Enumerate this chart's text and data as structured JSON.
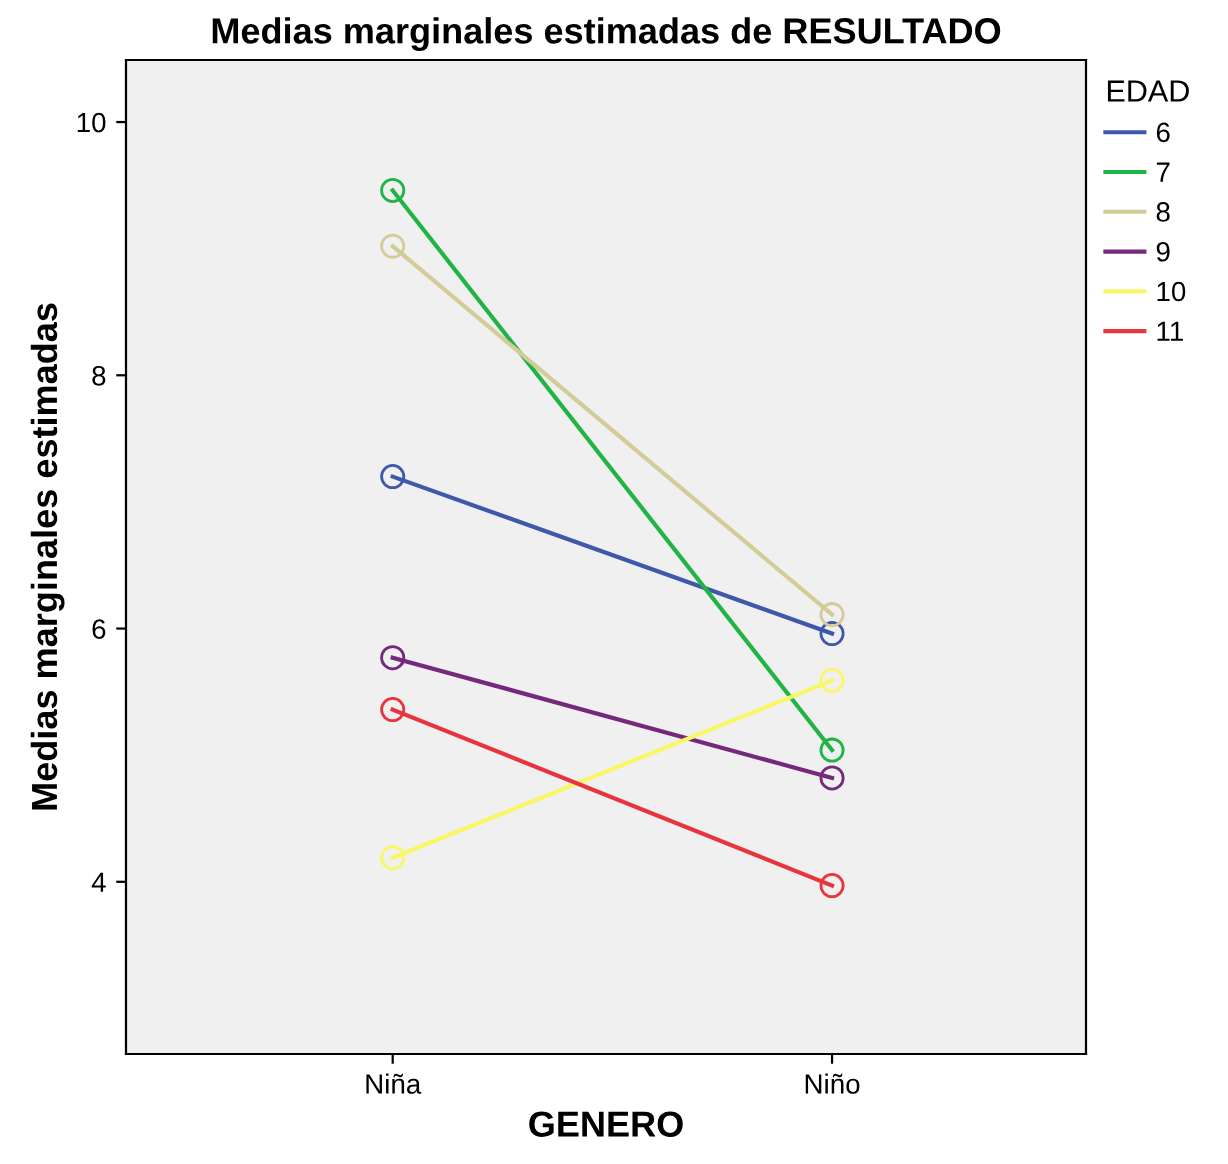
{
  "chart_data": {
    "type": "line",
    "title": "Medias marginales estimadas de RESULTADO",
    "xlabel": "GENERO",
    "ylabel": "Medias marginales estimadas",
    "legend_title": "EDAD",
    "categories": [
      "Niña",
      "Niño"
    ],
    "series": [
      {
        "name": "6",
        "color": "#3e58ac",
        "values": [
          7.2,
          5.96
        ]
      },
      {
        "name": "7",
        "color": "#20b444",
        "values": [
          9.46,
          5.04
        ]
      },
      {
        "name": "8",
        "color": "#d4cc98",
        "values": [
          9.02,
          6.11
        ]
      },
      {
        "name": "9",
        "color": "#74297c",
        "values": [
          5.77,
          4.82
        ]
      },
      {
        "name": "10",
        "color": "#f8f866",
        "values": [
          4.19,
          5.59
        ]
      },
      {
        "name": "11",
        "color": "#e8343c",
        "values": [
          5.36,
          3.97
        ]
      }
    ],
    "ylim": [
      2.64,
      10.49
    ],
    "yticks": [
      4,
      6,
      8,
      10
    ],
    "grid": false,
    "legend": "right",
    "marker": "circle",
    "line_style": "solid"
  }
}
